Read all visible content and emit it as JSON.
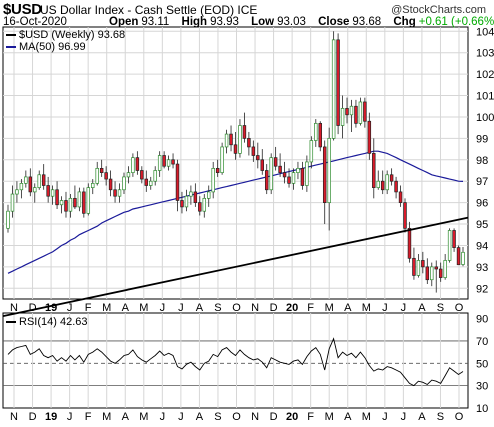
{
  "header": {
    "symbol": "$USD",
    "description": "US Dollar Index - Cash Settle (EOD) ICE",
    "copyright": "@StockCharts.com",
    "date": "16-Oct-2020",
    "open_label": "Open",
    "open": "93.11",
    "high_label": "High",
    "high": "93.93",
    "low_label": "Low",
    "low": "93.03",
    "close_label": "Close",
    "close": "93.68",
    "chg_label": "Chg",
    "chg": "+0.61 (+0.66%)"
  },
  "legend": {
    "price": "$USD (Weekly) 93.68",
    "ma": "MA(50) 96.99",
    "rsi": "RSI(14) 42.63"
  },
  "colors": {
    "up_candle": "#2e8b2e",
    "down_candle": "#d81b2a",
    "ma": "#1a1a9a",
    "trendline": "#000000",
    "grid": "#d6d6d6",
    "rsi": "#000000"
  },
  "chart_data": [
    {
      "type": "candlestick",
      "timeframe": "weekly",
      "series_name": "$USD (Weekly)",
      "y_range": [
        91.5,
        104.2
      ],
      "y_ticks": [
        92,
        93,
        94,
        95,
        96,
        97,
        98,
        99,
        100,
        101,
        102,
        103,
        104
      ],
      "x_ticks": [
        "N",
        "D",
        "19",
        "J",
        "F",
        "M",
        "A",
        "M",
        "J",
        "J",
        "A",
        "S",
        "O",
        "N",
        "D",
        "20",
        "F",
        "M",
        "A",
        "M",
        "J",
        "J",
        "A",
        "S",
        "O"
      ],
      "candles": [
        [
          94.8,
          95.9,
          94.6,
          95.6
        ],
        [
          95.6,
          96.8,
          95.3,
          96.4
        ],
        [
          96.4,
          97.0,
          96.0,
          96.6
        ],
        [
          96.6,
          97.1,
          96.2,
          96.9
        ],
        [
          96.9,
          97.5,
          96.7,
          97.2
        ],
        [
          97.2,
          97.6,
          96.3,
          96.5
        ],
        [
          96.5,
          96.9,
          96.0,
          96.7
        ],
        [
          96.7,
          97.5,
          96.6,
          97.3
        ],
        [
          97.3,
          97.8,
          96.6,
          96.8
        ],
        [
          96.8,
          97.2,
          96.0,
          96.3
        ],
        [
          96.3,
          96.8,
          95.9,
          96.6
        ],
        [
          96.6,
          97.0,
          95.7,
          95.9
        ],
        [
          95.9,
          96.3,
          95.5,
          96.1
        ],
        [
          96.1,
          96.5,
          95.3,
          95.6
        ],
        [
          95.6,
          96.4,
          95.3,
          96.2
        ],
        [
          96.2,
          96.8,
          95.7,
          95.8
        ],
        [
          95.8,
          96.7,
          95.6,
          96.5
        ],
        [
          96.5,
          96.7,
          95.3,
          95.5
        ],
        [
          95.5,
          96.9,
          95.4,
          96.7
        ],
        [
          96.7,
          97.1,
          96.4,
          96.9
        ],
        [
          96.9,
          97.9,
          96.8,
          97.6
        ],
        [
          97.6,
          98.0,
          97.2,
          97.4
        ],
        [
          97.4,
          97.7,
          96.8,
          97.1
        ],
        [
          97.1,
          97.5,
          96.3,
          96.6
        ],
        [
          96.6,
          97.0,
          96.0,
          96.3
        ],
        [
          96.3,
          96.9,
          96.0,
          96.6
        ],
        [
          96.6,
          97.4,
          96.4,
          97.2
        ],
        [
          97.2,
          97.7,
          96.9,
          97.4
        ],
        [
          97.4,
          98.3,
          97.2,
          98.1
        ],
        [
          98.1,
          98.4,
          97.3,
          97.5
        ],
        [
          97.5,
          97.7,
          96.9,
          97.1
        ],
        [
          97.1,
          97.5,
          96.5,
          96.8
        ],
        [
          96.8,
          97.2,
          96.6,
          97.0
        ],
        [
          97.0,
          97.7,
          96.8,
          97.5
        ],
        [
          97.5,
          98.4,
          97.2,
          98.2
        ],
        [
          98.2,
          98.4,
          97.6,
          97.7
        ],
        [
          97.7,
          98.2,
          97.5,
          98.0
        ],
        [
          98.0,
          98.3,
          97.6,
          97.8
        ],
        [
          97.8,
          98.0,
          95.6,
          96.1
        ],
        [
          96.1,
          96.5,
          95.5,
          95.8
        ],
        [
          95.8,
          96.6,
          95.6,
          96.3
        ],
        [
          96.3,
          96.8,
          95.9,
          96.5
        ],
        [
          96.5,
          96.9,
          95.8,
          96.0
        ],
        [
          96.0,
          96.3,
          95.4,
          95.6
        ],
        [
          95.6,
          96.4,
          95.3,
          96.2
        ],
        [
          96.2,
          96.8,
          95.8,
          96.5
        ],
        [
          96.5,
          97.9,
          96.2,
          97.6
        ],
        [
          97.6,
          98.0,
          97.2,
          97.4
        ],
        [
          97.4,
          98.8,
          97.3,
          98.6
        ],
        [
          98.6,
          99.4,
          98.3,
          99.2
        ],
        [
          99.2,
          99.6,
          98.4,
          98.7
        ],
        [
          98.7,
          99.3,
          98.0,
          98.3
        ],
        [
          98.3,
          99.9,
          98.1,
          99.6
        ],
        [
          99.6,
          100.2,
          98.8,
          99.0
        ],
        [
          99.0,
          99.3,
          98.2,
          98.6
        ],
        [
          98.6,
          98.9,
          97.9,
          98.2
        ],
        [
          98.2,
          98.8,
          97.6,
          98.0
        ],
        [
          98.0,
          98.5,
          97.3,
          97.5
        ],
        [
          97.5,
          97.8,
          96.4,
          96.6
        ],
        [
          96.6,
          98.3,
          96.4,
          98.1
        ],
        [
          98.1,
          98.6,
          97.5,
          97.7
        ],
        [
          97.7,
          98.3,
          97.2,
          97.4
        ],
        [
          97.4,
          97.9,
          96.9,
          97.2
        ],
        [
          97.2,
          97.6,
          96.7,
          96.9
        ],
        [
          96.9,
          97.6,
          96.6,
          97.4
        ],
        [
          97.4,
          97.9,
          97.1,
          97.6
        ],
        [
          97.6,
          97.9,
          96.6,
          96.8
        ],
        [
          96.8,
          98.2,
          96.5,
          97.9
        ],
        [
          97.9,
          99.1,
          97.6,
          98.9
        ],
        [
          98.9,
          99.9,
          98.6,
          99.7
        ],
        [
          99.7,
          99.8,
          98.4,
          98.6
        ],
        [
          98.6,
          98.9,
          95.0,
          96.0
        ],
        [
          96.0,
          99.5,
          94.7,
          99.0
        ],
        [
          99.0,
          104.0,
          98.9,
          103.6
        ],
        [
          103.6,
          103.9,
          99.2,
          99.6
        ],
        [
          99.6,
          101.0,
          99.0,
          100.4
        ],
        [
          100.4,
          100.9,
          99.7,
          100.1
        ],
        [
          100.1,
          100.8,
          99.3,
          100.5
        ],
        [
          100.5,
          100.8,
          99.5,
          99.7
        ],
        [
          99.7,
          100.9,
          99.6,
          100.7
        ],
        [
          100.7,
          100.9,
          99.5,
          99.8
        ],
        [
          99.8,
          100.2,
          98.0,
          98.3
        ],
        [
          98.3,
          99.0,
          96.2,
          96.7
        ],
        [
          96.7,
          97.5,
          96.6,
          97.0
        ],
        [
          97.0,
          97.5,
          96.4,
          96.6
        ],
        [
          96.6,
          97.5,
          96.4,
          97.3
        ],
        [
          97.3,
          97.6,
          96.8,
          97.0
        ],
        [
          97.0,
          97.2,
          96.2,
          96.5
        ],
        [
          96.5,
          96.8,
          95.8,
          96.0
        ],
        [
          96.0,
          96.2,
          94.6,
          94.8
        ],
        [
          94.8,
          95.1,
          93.2,
          93.4
        ],
        [
          93.4,
          93.9,
          92.4,
          92.6
        ],
        [
          92.6,
          93.6,
          92.5,
          93.3
        ],
        [
          93.3,
          93.7,
          92.7,
          93.0
        ],
        [
          93.0,
          93.4,
          92.2,
          92.4
        ],
        [
          92.4,
          93.2,
          92.1,
          93.0
        ],
        [
          93.0,
          93.3,
          91.8,
          92.9
        ],
        [
          92.9,
          93.2,
          92.3,
          92.5
        ],
        [
          92.5,
          93.6,
          92.4,
          93.3
        ],
        [
          93.3,
          94.8,
          93.2,
          94.7
        ],
        [
          94.7,
          94.8,
          93.7,
          93.9
        ],
        [
          93.9,
          94.0,
          93.1,
          93.1
        ],
        [
          93.11,
          93.93,
          93.03,
          93.68
        ]
      ],
      "ma50": [
        92.7,
        92.8,
        92.9,
        93.0,
        93.1,
        93.2,
        93.3,
        93.4,
        93.5,
        93.6,
        93.7,
        93.85,
        94.0,
        94.1,
        94.25,
        94.35,
        94.5,
        94.6,
        94.7,
        94.8,
        94.9,
        95.05,
        95.15,
        95.25,
        95.35,
        95.45,
        95.55,
        95.6,
        95.7,
        95.75,
        95.8,
        95.85,
        95.9,
        95.95,
        96.0,
        96.05,
        96.1,
        96.15,
        96.2,
        96.25,
        96.3,
        96.35,
        96.4,
        96.45,
        96.5,
        96.55,
        96.6,
        96.65,
        96.7,
        96.75,
        96.8,
        96.85,
        96.9,
        96.95,
        97.0,
        97.05,
        97.1,
        97.15,
        97.2,
        97.25,
        97.3,
        97.35,
        97.4,
        97.45,
        97.5,
        97.55,
        97.6,
        97.65,
        97.7,
        97.75,
        97.8,
        97.85,
        97.9,
        97.95,
        98.0,
        98.05,
        98.1,
        98.15,
        98.2,
        98.25,
        98.3,
        98.35,
        98.4,
        98.4,
        98.35,
        98.3,
        98.2,
        98.1,
        98.0,
        97.9,
        97.8,
        97.7,
        97.6,
        97.5,
        97.4,
        97.3,
        97.25,
        97.2,
        97.15,
        97.1,
        97.05,
        97.0,
        96.99
      ],
      "trendline": {
        "from": [
          0,
          90.75
        ],
        "to": [
          102,
          95.25
        ]
      }
    },
    {
      "type": "line",
      "series_name": "RSI(14)",
      "y_range": [
        10,
        95
      ],
      "y_ticks": [
        10,
        30,
        50,
        70,
        90
      ],
      "reference_lines": [
        30,
        50,
        70
      ],
      "values": [
        58,
        62,
        64,
        65,
        66,
        58,
        60,
        63,
        57,
        55,
        57,
        52,
        55,
        52,
        57,
        53,
        57,
        51,
        58,
        60,
        63,
        60,
        56,
        52,
        50,
        53,
        57,
        58,
        62,
        56,
        53,
        51,
        54,
        57,
        61,
        57,
        59,
        57,
        47,
        45,
        49,
        51,
        47,
        44,
        50,
        52,
        58,
        56,
        62,
        64,
        60,
        57,
        62,
        58,
        55,
        53,
        54,
        51,
        46,
        55,
        53,
        51,
        50,
        49,
        52,
        53,
        49,
        56,
        61,
        64,
        58,
        44,
        63,
        72,
        55,
        60,
        57,
        59,
        55,
        60,
        55,
        48,
        43,
        45,
        44,
        47,
        46,
        44,
        42,
        37,
        32,
        30,
        34,
        33,
        31,
        35,
        34,
        32,
        39,
        46,
        43,
        40,
        42.63
      ]
    }
  ]
}
